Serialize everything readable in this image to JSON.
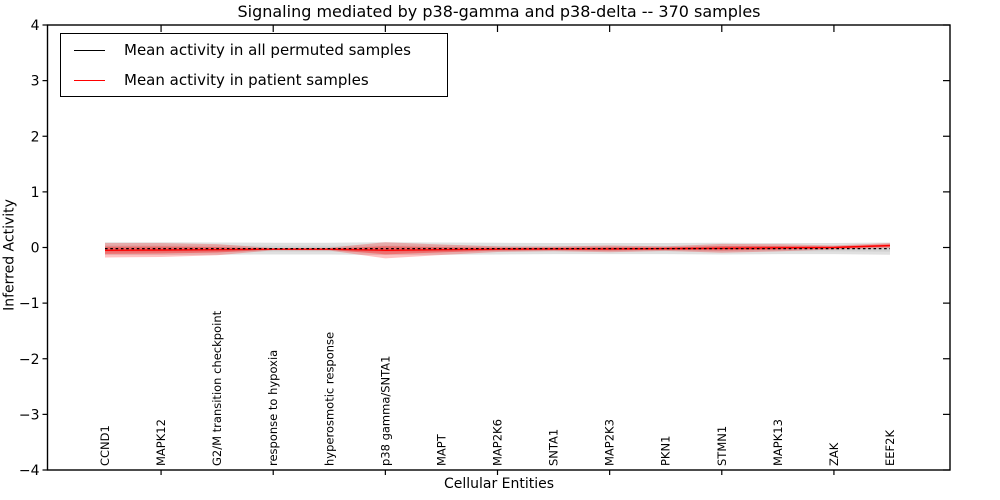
{
  "chart_data": {
    "type": "line",
    "title": "Signaling mediated by p38-gamma and p38-delta -- 370 samples",
    "xlabel": "Cellular Entities",
    "ylabel": "Inferred Activity",
    "ylim": [
      -4,
      4
    ],
    "yticks": [
      4,
      3,
      2,
      1,
      0,
      -1,
      -2,
      -3,
      -4
    ],
    "grid": false,
    "legend_position": "upper left",
    "categories": [
      "CCND1",
      "MAPK12",
      "G2/M transition checkpoint",
      "response to hypoxia",
      "hyperosmotic response",
      "p38 gamma/SNTA1",
      "MAPT",
      "MAP2K6",
      "SNTA1",
      "MAP2K3",
      "PKN1",
      "STMN1",
      "MAPK13",
      "ZAK",
      "EEF2K"
    ],
    "xtick_indices": [
      1,
      3,
      5,
      7,
      9,
      11,
      13
    ],
    "series": [
      {
        "name": "Mean activity in all permuted samples",
        "color": "#000000",
        "style": "dashed",
        "values": [
          -0.02,
          -0.02,
          -0.02,
          -0.02,
          -0.02,
          -0.02,
          -0.02,
          -0.02,
          -0.02,
          -0.02,
          -0.02,
          -0.02,
          -0.02,
          -0.02,
          -0.02
        ],
        "band": [
          0.115,
          0.115,
          0.11,
          0.105,
          0.105,
          0.115,
          0.11,
          0.105,
          0.1,
          0.1,
          0.1,
          0.105,
          0.1,
          0.1,
          0.11
        ],
        "band_color": "#999999"
      },
      {
        "name": "Mean activity in patient samples",
        "color": "#ff0000",
        "style": "solid",
        "values": [
          -0.05,
          -0.045,
          -0.04,
          -0.03,
          -0.03,
          -0.05,
          -0.04,
          -0.03,
          -0.025,
          -0.025,
          -0.02,
          -0.015,
          -0.005,
          0.0,
          0.035
        ],
        "band": [
          0.13,
          0.125,
          0.1,
          0.02,
          0.025,
          0.145,
          0.095,
          0.05,
          0.04,
          0.06,
          0.04,
          0.08,
          0.065,
          0.035,
          0.045
        ],
        "band_color": "#ff0000"
      }
    ]
  }
}
